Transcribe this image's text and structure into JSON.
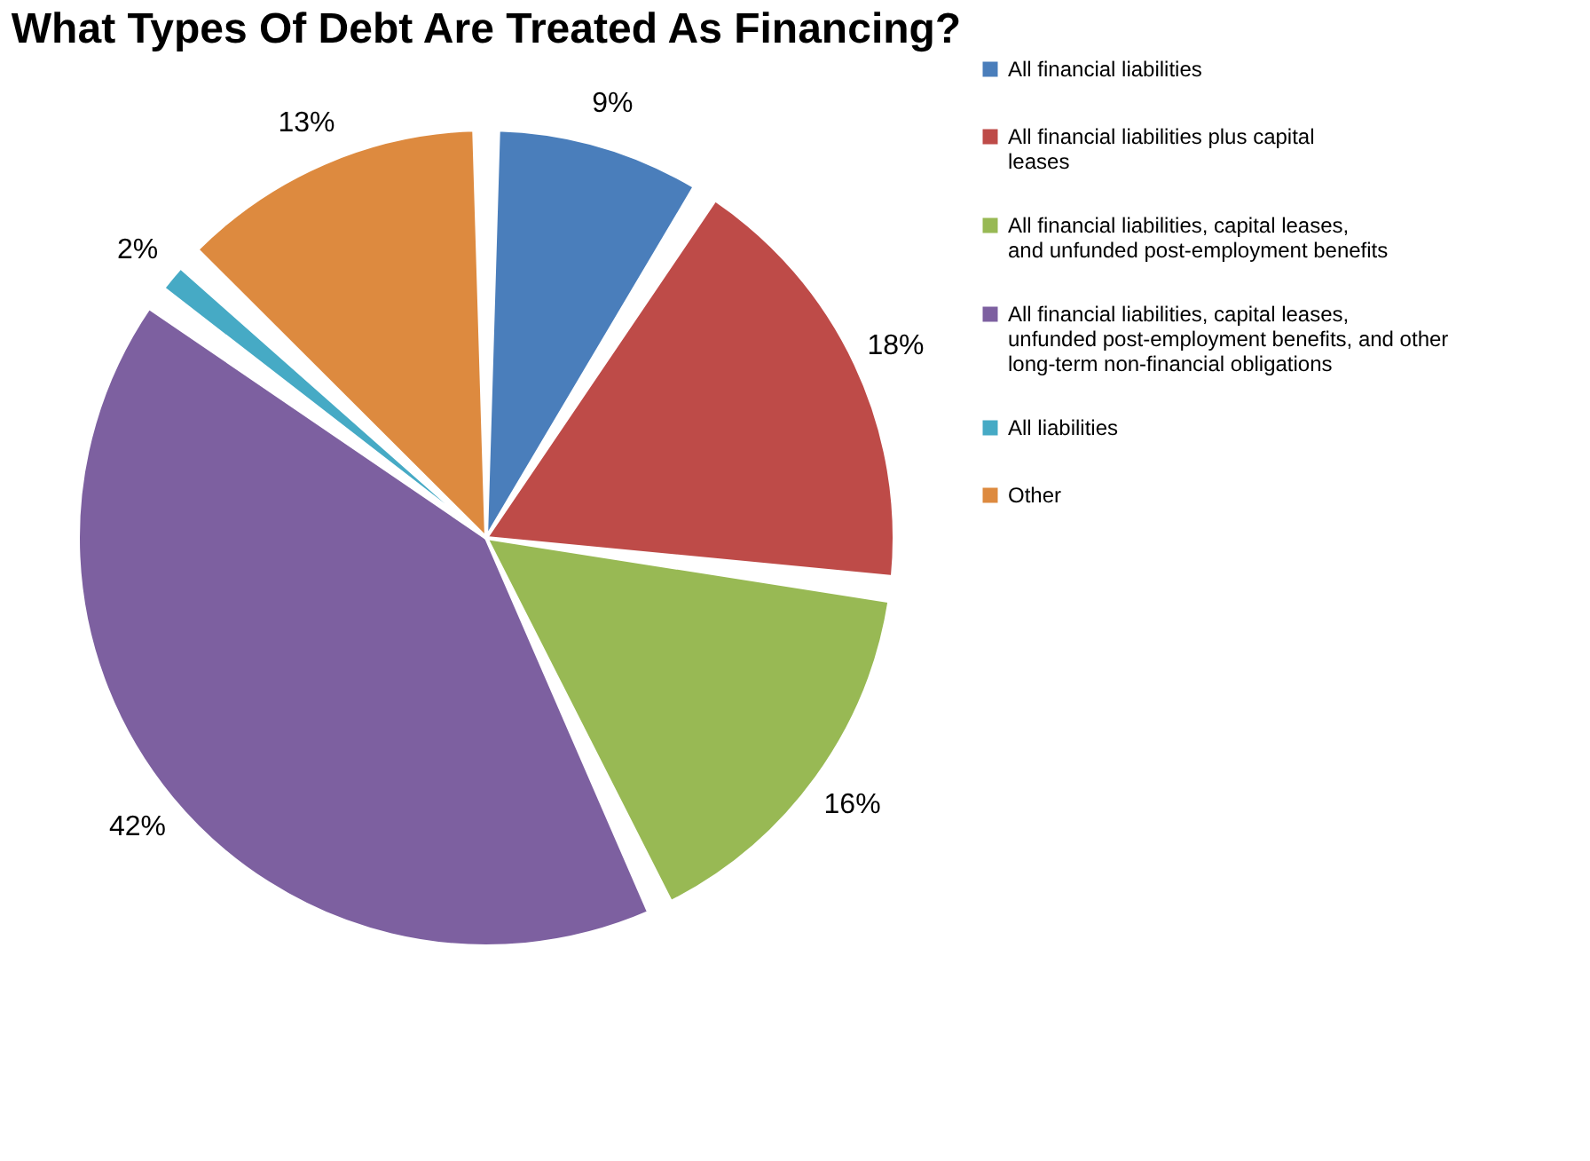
{
  "chart_data": {
    "type": "pie",
    "title": "What Types Of Debt Are Treated As Financing?",
    "categories": [
      "All financial liabilities",
      "All financial liabilities plus capital leases",
      "All financial liabilities, capital leases, and unfunded post-employment benefits",
      "All financial liabilities, capital leases, unfunded post-employment benefits, and other long-term non-financial obligations",
      "All liabilities",
      "Other"
    ],
    "values": [
      9,
      18,
      16,
      42,
      2,
      13
    ],
    "value_labels": [
      "9%",
      "18%",
      "16%",
      "42%",
      "2%",
      "13%"
    ],
    "colors": [
      "#4a7ebb",
      "#be4b48",
      "#98b954",
      "#7d60a0",
      "#46aac5",
      "#dd8a3f"
    ],
    "legend": "right"
  }
}
